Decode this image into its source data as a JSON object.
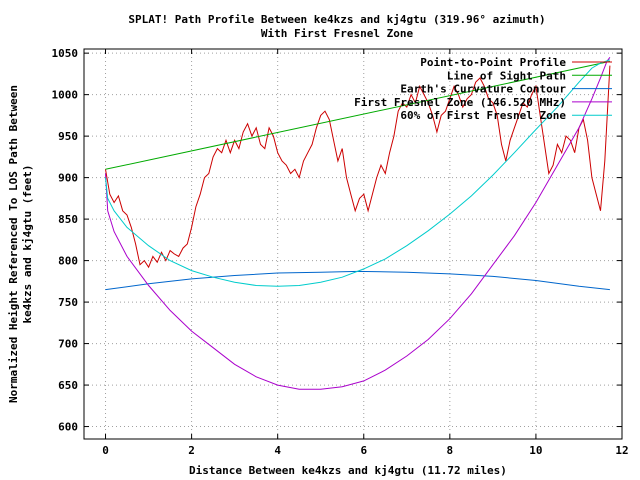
{
  "chart_data": {
    "type": "line",
    "title": "SPLAT! Path Profile Between ke4kzs and kj4gtu (319.96° azimuth)",
    "subtitle": "With First Fresnel Zone",
    "xlabel": "Distance Between ke4kzs and kj4gtu (11.72 miles)",
    "ylabel_line1": "Normalized Height Referenced To LOS Path Between",
    "ylabel_line2": "ke4kzs and kj4gtu (feet)",
    "xlim": [
      -0.5,
      12
    ],
    "ylim": [
      585,
      1055
    ],
    "x_ticks": [
      0,
      2,
      4,
      6,
      8,
      10,
      12
    ],
    "y_ticks": [
      600,
      650,
      700,
      750,
      800,
      850,
      900,
      950,
      1000,
      1050
    ],
    "grid": true,
    "legend_position": "top-right",
    "series": [
      {
        "name": "Point-to-Point Profile",
        "color": "#cc0000",
        "x": [
          0,
          0.1,
          0.2,
          0.3,
          0.4,
          0.5,
          0.6,
          0.7,
          0.8,
          0.9,
          1.0,
          1.1,
          1.2,
          1.3,
          1.4,
          1.5,
          1.6,
          1.7,
          1.8,
          1.9,
          2.0,
          2.1,
          2.2,
          2.3,
          2.4,
          2.5,
          2.6,
          2.7,
          2.8,
          2.9,
          3.0,
          3.1,
          3.2,
          3.3,
          3.4,
          3.5,
          3.6,
          3.7,
          3.8,
          3.9,
          4.0,
          4.1,
          4.2,
          4.3,
          4.4,
          4.5,
          4.6,
          4.7,
          4.8,
          4.9,
          5.0,
          5.1,
          5.2,
          5.3,
          5.4,
          5.5,
          5.6,
          5.7,
          5.8,
          5.9,
          6.0,
          6.1,
          6.2,
          6.3,
          6.4,
          6.5,
          6.6,
          6.7,
          6.8,
          6.9,
          7.0,
          7.1,
          7.2,
          7.3,
          7.4,
          7.5,
          7.6,
          7.7,
          7.8,
          7.9,
          8.0,
          8.1,
          8.2,
          8.3,
          8.4,
          8.5,
          8.6,
          8.7,
          8.8,
          8.9,
          9.0,
          9.1,
          9.2,
          9.3,
          9.4,
          9.5,
          9.6,
          9.7,
          9.8,
          9.9,
          10.0,
          10.1,
          10.2,
          10.3,
          10.4,
          10.5,
          10.6,
          10.7,
          10.8,
          10.9,
          11.0,
          11.1,
          11.2,
          11.3,
          11.4,
          11.5,
          11.6,
          11.72
        ],
        "y": [
          910,
          880,
          870,
          878,
          860,
          855,
          840,
          820,
          795,
          800,
          792,
          805,
          798,
          810,
          800,
          812,
          808,
          805,
          815,
          820,
          840,
          865,
          880,
          900,
          905,
          925,
          935,
          930,
          945,
          930,
          945,
          935,
          955,
          965,
          950,
          960,
          940,
          935,
          960,
          950,
          930,
          920,
          915,
          905,
          910,
          900,
          920,
          930,
          940,
          960,
          975,
          980,
          970,
          945,
          920,
          935,
          900,
          880,
          860,
          875,
          880,
          860,
          880,
          900,
          915,
          905,
          930,
          950,
          980,
          990,
          985,
          1000,
          990,
          1010,
          1000,
          990,
          975,
          955,
          975,
          980,
          995,
          1010,
          1000,
          985,
          995,
          1000,
          1015,
          1020,
          1010,
          995,
          990,
          975,
          940,
          920,
          945,
          960,
          975,
          990,
          985,
          1000,
          1010,
          975,
          940,
          905,
          915,
          940,
          930,
          950,
          945,
          930,
          960,
          970,
          945,
          900,
          880,
          860,
          920,
          1035
        ]
      },
      {
        "name": "Line of Sight Path",
        "color": "#00aa00",
        "x": [
          0,
          11.72
        ],
        "y": [
          910,
          1040
        ]
      },
      {
        "name": "Earth's Curvature Contour",
        "color": "#0066cc",
        "x": [
          0,
          1,
          2,
          3,
          4,
          5,
          5.86,
          7,
          8,
          9,
          10,
          11,
          11.72
        ],
        "y": [
          765,
          772,
          778,
          782,
          785,
          786,
          787,
          786,
          784,
          781,
          776,
          769,
          765
        ]
      },
      {
        "name": "First Fresnel Zone (146.520 MHz)",
        "color": "#aa00cc",
        "x": [
          0,
          0.05,
          0.2,
          0.5,
          1,
          1.5,
          2,
          2.5,
          3,
          3.5,
          4,
          4.5,
          5,
          5.5,
          6,
          6.5,
          7,
          7.5,
          8,
          8.5,
          9,
          9.5,
          10,
          10.5,
          11,
          11.3,
          11.5,
          11.65,
          11.72
        ],
        "y": [
          905,
          860,
          835,
          805,
          770,
          740,
          715,
          695,
          675,
          660,
          650,
          645,
          645,
          648,
          655,
          668,
          685,
          705,
          730,
          760,
          795,
          830,
          870,
          915,
          960,
          995,
          1020,
          1040,
          1045
        ]
      },
      {
        "name": "60% of First Fresnel Zone",
        "color": "#00cccc",
        "x": [
          0,
          0.05,
          0.2,
          0.5,
          1,
          1.5,
          2,
          2.5,
          3,
          3.5,
          4,
          4.5,
          5,
          5.5,
          6,
          6.5,
          7,
          7.5,
          8,
          8.5,
          9,
          9.5,
          10,
          10.5,
          11,
          11.3,
          11.5,
          11.72
        ],
        "y": [
          900,
          875,
          860,
          840,
          818,
          800,
          788,
          780,
          774,
          770,
          769,
          770,
          774,
          780,
          790,
          802,
          818,
          836,
          856,
          878,
          903,
          930,
          958,
          985,
          1015,
          1032,
          1038,
          1042
        ]
      }
    ]
  }
}
